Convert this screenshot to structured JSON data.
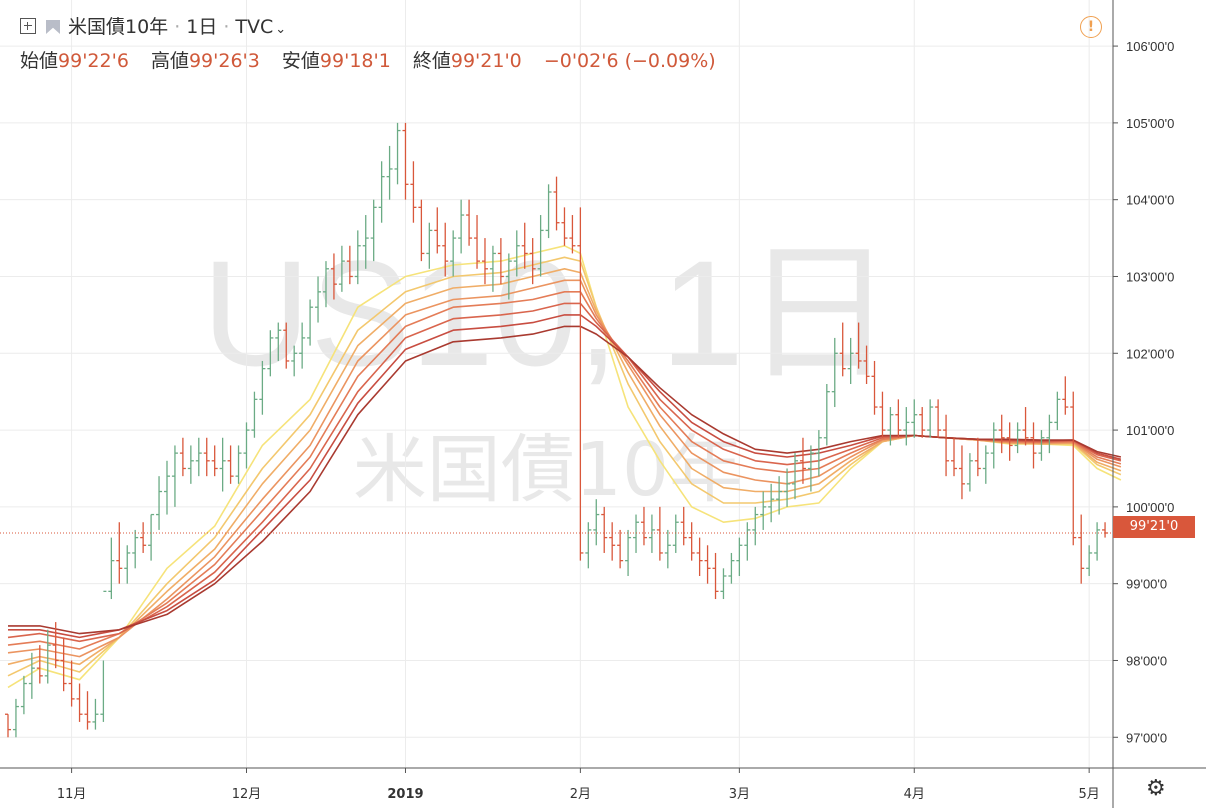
{
  "header": {
    "symbol_name": "米国債10年",
    "interval": "1日",
    "source": "TVC"
  },
  "ohlc": {
    "open_label": "始値",
    "open_value": "99'22'6",
    "high_label": "高値",
    "high_value": "99'26'3",
    "low_label": "安値",
    "low_value": "99'18'1",
    "close_label": "終値",
    "close_value": "99'21'0",
    "change_value": "−0'02'6 (−0.09%)"
  },
  "watermark": {
    "line1": "US10, 1日",
    "line2": "米国債10年"
  },
  "last_price_tag": "99'21'0",
  "colors": {
    "up": "#6bab85",
    "down": "#d9573b",
    "price_line": "#d9573b",
    "ribbon": [
      "#f6e37a",
      "#f3c86e",
      "#f0ad67",
      "#eb9460",
      "#e47c57",
      "#d9654d",
      "#c84d41",
      "#a93a30"
    ]
  },
  "icons": {
    "add": "plus-square-icon",
    "flag": "flag-icon",
    "alert": "warning-circle-icon",
    "settings": "gear-icon"
  },
  "chart_data": {
    "type": "ohlc",
    "title": "米国債10年",
    "ylim": [
      96.6,
      106.6
    ],
    "y_ticks": [
      97,
      98,
      99,
      100,
      101,
      102,
      103,
      104,
      105,
      106
    ],
    "y_tick_labels": [
      "97'00'0",
      "98'00'0",
      "99'00'0",
      "100'00'0",
      "101'00'0",
      "102'00'0",
      "103'00'0",
      "104'00'0",
      "105'00'0",
      "106'00'0"
    ],
    "x_ticks": [
      {
        "label": "11月",
        "day": 8
      },
      {
        "label": "12月",
        "day": 30
      },
      {
        "label": "2019",
        "day": 50
      },
      {
        "label": "2月",
        "day": 72
      },
      {
        "label": "3月",
        "day": 92
      },
      {
        "label": "4月",
        "day": 114
      },
      {
        "label": "5月",
        "day": 136
      }
    ],
    "last_close": 99.66,
    "bars": [
      [
        97.3,
        97.3,
        97.0,
        97.1
      ],
      [
        97.1,
        97.5,
        97.0,
        97.4
      ],
      [
        97.4,
        97.8,
        97.3,
        97.7
      ],
      [
        97.7,
        98.1,
        97.5,
        97.9
      ],
      [
        97.9,
        98.2,
        97.7,
        97.8
      ],
      [
        97.8,
        98.4,
        97.7,
        98.2
      ],
      [
        98.2,
        98.5,
        97.9,
        98.0
      ],
      [
        98.0,
        98.3,
        97.6,
        97.7
      ],
      [
        97.7,
        98.0,
        97.4,
        97.5
      ],
      [
        97.5,
        97.7,
        97.2,
        97.3
      ],
      [
        97.3,
        97.6,
        97.1,
        97.2
      ],
      [
        97.2,
        97.5,
        97.1,
        97.3
      ],
      [
        97.3,
        98.0,
        97.2,
        98.9
      ],
      [
        98.9,
        99.6,
        98.8,
        99.3
      ],
      [
        99.3,
        99.8,
        99.0,
        99.2
      ],
      [
        99.2,
        99.5,
        99.0,
        99.4
      ],
      [
        99.4,
        99.7,
        99.2,
        99.6
      ],
      [
        99.6,
        99.8,
        99.4,
        99.5
      ],
      [
        99.5,
        99.9,
        99.3,
        99.9
      ],
      [
        99.9,
        100.4,
        99.7,
        100.2
      ],
      [
        100.2,
        100.6,
        99.9,
        100.4
      ],
      [
        100.4,
        100.8,
        100.0,
        100.7
      ],
      [
        100.7,
        100.9,
        100.4,
        100.5
      ],
      [
        100.5,
        100.8,
        100.3,
        100.6
      ],
      [
        100.6,
        100.9,
        100.4,
        100.7
      ],
      [
        100.7,
        100.9,
        100.4,
        100.6
      ],
      [
        100.6,
        100.8,
        100.4,
        100.5
      ],
      [
        100.5,
        100.9,
        100.2,
        100.6
      ],
      [
        100.6,
        100.8,
        100.3,
        100.4
      ],
      [
        100.4,
        100.8,
        100.3,
        100.7
      ],
      [
        100.7,
        101.1,
        100.5,
        101.0
      ],
      [
        101.0,
        101.5,
        100.9,
        101.4
      ],
      [
        101.4,
        101.9,
        101.2,
        101.8
      ],
      [
        101.8,
        102.3,
        101.7,
        102.2
      ],
      [
        102.2,
        102.4,
        101.9,
        102.3
      ],
      [
        102.3,
        102.4,
        101.8,
        101.9
      ],
      [
        101.9,
        102.1,
        101.7,
        102.0
      ],
      [
        102.0,
        102.4,
        101.8,
        102.2
      ],
      [
        102.2,
        102.7,
        102.1,
        102.6
      ],
      [
        102.6,
        103.0,
        102.4,
        102.8
      ],
      [
        102.8,
        103.2,
        102.6,
        103.1
      ],
      [
        103.1,
        103.3,
        102.7,
        102.9
      ],
      [
        102.9,
        103.4,
        102.8,
        103.2
      ],
      [
        103.2,
        103.4,
        102.9,
        103.0
      ],
      [
        103.0,
        103.6,
        102.9,
        103.4
      ],
      [
        103.4,
        103.8,
        103.1,
        103.5
      ],
      [
        103.5,
        104.0,
        103.2,
        103.9
      ],
      [
        103.9,
        104.5,
        103.7,
        104.3
      ],
      [
        104.3,
        104.7,
        104.0,
        104.4
      ],
      [
        104.4,
        105.0,
        104.2,
        104.9
      ],
      [
        104.9,
        105.0,
        104.0,
        104.2
      ],
      [
        104.2,
        104.5,
        103.7,
        103.9
      ],
      [
        103.9,
        104.0,
        103.2,
        103.3
      ],
      [
        103.3,
        103.7,
        103.1,
        103.6
      ],
      [
        103.6,
        103.9,
        103.3,
        103.4
      ],
      [
        103.4,
        103.7,
        103.0,
        103.2
      ],
      [
        103.2,
        103.6,
        103.0,
        103.5
      ],
      [
        103.5,
        104.0,
        103.3,
        103.8
      ],
      [
        103.8,
        104.0,
        103.4,
        103.5
      ],
      [
        103.5,
        103.8,
        103.1,
        103.2
      ],
      [
        103.2,
        103.5,
        102.9,
        103.1
      ],
      [
        103.1,
        103.4,
        102.8,
        103.3
      ],
      [
        103.3,
        103.5,
        102.9,
        103.0
      ],
      [
        103.0,
        103.3,
        102.7,
        103.2
      ],
      [
        103.2,
        103.6,
        103.0,
        103.4
      ],
      [
        103.4,
        103.7,
        103.1,
        103.3
      ],
      [
        103.3,
        103.5,
        102.9,
        103.1
      ],
      [
        103.1,
        103.8,
        103.0,
        103.6
      ],
      [
        103.6,
        104.2,
        103.5,
        104.1
      ],
      [
        104.1,
        104.3,
        103.6,
        103.7
      ],
      [
        103.7,
        103.9,
        103.4,
        103.5
      ],
      [
        103.5,
        103.8,
        103.3,
        103.4
      ],
      [
        103.4,
        103.9,
        99.3,
        99.4
      ],
      [
        99.4,
        99.8,
        99.2,
        99.7
      ],
      [
        99.7,
        100.1,
        99.5,
        99.9
      ],
      [
        99.9,
        100.0,
        99.4,
        99.6
      ],
      [
        99.6,
        99.8,
        99.3,
        99.5
      ],
      [
        99.5,
        99.7,
        99.2,
        99.3
      ],
      [
        99.3,
        99.7,
        99.1,
        99.6
      ],
      [
        99.6,
        99.9,
        99.4,
        99.8
      ],
      [
        99.8,
        100.0,
        99.5,
        99.6
      ],
      [
        99.6,
        99.9,
        99.4,
        99.7
      ],
      [
        99.7,
        100.0,
        99.3,
        99.4
      ],
      [
        99.4,
        99.7,
        99.2,
        99.5
      ],
      [
        99.5,
        99.9,
        99.4,
        99.8
      ],
      [
        99.8,
        100.0,
        99.5,
        99.6
      ],
      [
        99.6,
        99.8,
        99.3,
        99.4
      ],
      [
        99.4,
        99.6,
        99.1,
        99.3
      ],
      [
        99.3,
        99.5,
        99.0,
        99.2
      ],
      [
        99.2,
        99.4,
        98.8,
        98.9
      ],
      [
        98.9,
        99.2,
        98.8,
        99.1
      ],
      [
        99.1,
        99.4,
        99.0,
        99.3
      ],
      [
        99.3,
        99.6,
        99.1,
        99.5
      ],
      [
        99.5,
        99.8,
        99.3,
        99.7
      ],
      [
        99.7,
        100.0,
        99.5,
        99.9
      ],
      [
        99.9,
        100.2,
        99.7,
        100.0
      ],
      [
        100.0,
        100.3,
        99.8,
        100.1
      ],
      [
        100.1,
        100.4,
        99.9,
        100.2
      ],
      [
        100.2,
        100.5,
        100.0,
        100.3
      ],
      [
        100.3,
        100.7,
        100.1,
        100.6
      ],
      [
        100.6,
        100.9,
        100.3,
        100.5
      ],
      [
        100.5,
        100.8,
        100.2,
        100.7
      ],
      [
        100.7,
        101.0,
        100.4,
        100.9
      ],
      [
        100.9,
        101.6,
        100.8,
        101.5
      ],
      [
        101.5,
        102.2,
        101.3,
        102.0
      ],
      [
        102.0,
        102.4,
        101.7,
        101.8
      ],
      [
        101.8,
        102.2,
        101.6,
        102.0
      ],
      [
        102.0,
        102.4,
        101.8,
        101.9
      ],
      [
        101.9,
        102.1,
        101.6,
        101.7
      ],
      [
        101.7,
        101.9,
        101.2,
        101.3
      ],
      [
        101.3,
        101.5,
        100.9,
        101.0
      ],
      [
        101.0,
        101.3,
        100.8,
        101.2
      ],
      [
        101.2,
        101.4,
        100.9,
        101.0
      ],
      [
        101.0,
        101.3,
        100.8,
        101.1
      ],
      [
        101.1,
        101.4,
        100.9,
        101.2
      ],
      [
        101.2,
        101.3,
        100.9,
        101.0
      ],
      [
        101.0,
        101.4,
        100.9,
        101.3
      ],
      [
        101.3,
        101.4,
        100.9,
        101.0
      ],
      [
        101.0,
        101.2,
        100.4,
        100.6
      ],
      [
        100.6,
        100.9,
        100.4,
        100.5
      ],
      [
        100.5,
        100.8,
        100.1,
        100.3
      ],
      [
        100.3,
        100.7,
        100.2,
        100.6
      ],
      [
        100.6,
        100.9,
        100.4,
        100.5
      ],
      [
        100.5,
        100.8,
        100.3,
        100.7
      ],
      [
        100.7,
        101.1,
        100.5,
        101.0
      ],
      [
        101.0,
        101.2,
        100.7,
        100.9
      ],
      [
        100.9,
        101.1,
        100.6,
        100.8
      ],
      [
        100.8,
        101.1,
        100.7,
        101.0
      ],
      [
        101.0,
        101.3,
        100.8,
        100.9
      ],
      [
        100.9,
        101.1,
        100.5,
        100.7
      ],
      [
        100.7,
        101.0,
        100.6,
        100.9
      ],
      [
        100.9,
        101.2,
        100.7,
        101.1
      ],
      [
        101.1,
        101.5,
        101.0,
        101.4
      ],
      [
        101.4,
        101.7,
        101.2,
        101.3
      ],
      [
        101.3,
        101.5,
        99.5,
        99.6
      ],
      [
        99.6,
        99.9,
        99.0,
        99.2
      ],
      [
        99.2,
        99.5,
        99.1,
        99.4
      ],
      [
        99.4,
        99.8,
        99.3,
        99.7
      ],
      [
        99.7,
        99.8,
        99.6,
        99.66
      ]
    ],
    "ma_ribbon": {
      "days": [
        0,
        4,
        9,
        14,
        20,
        26,
        32,
        38,
        44,
        50,
        56,
        62,
        66,
        70,
        72,
        74,
        78,
        82,
        86,
        90,
        94,
        98,
        102,
        106,
        110,
        114,
        118,
        122,
        126,
        130,
        134,
        137,
        140
      ],
      "series": [
        {
          "values": [
            97.65,
            97.9,
            97.75,
            98.3,
            99.2,
            99.75,
            100.8,
            101.4,
            102.6,
            103.0,
            103.15,
            103.2,
            103.3,
            103.4,
            103.3,
            102.6,
            101.3,
            100.6,
            100.0,
            99.8,
            99.85,
            100.0,
            100.05,
            100.5,
            100.85,
            100.93,
            100.9,
            100.87,
            100.82,
            100.82,
            100.8,
            100.5,
            100.35
          ]
        },
        {
          "values": [
            97.8,
            98.0,
            97.85,
            98.3,
            99.0,
            99.6,
            100.5,
            101.2,
            102.3,
            102.8,
            103.0,
            103.05,
            103.15,
            103.25,
            103.2,
            102.6,
            101.6,
            100.85,
            100.3,
            100.05,
            100.05,
            100.1,
            100.2,
            100.55,
            100.85,
            100.93,
            100.9,
            100.87,
            100.83,
            100.82,
            100.82,
            100.55,
            100.42
          ]
        },
        {
          "values": [
            97.95,
            98.05,
            97.95,
            98.3,
            98.9,
            99.45,
            100.3,
            101.0,
            102.1,
            102.65,
            102.85,
            102.9,
            103.0,
            103.1,
            103.05,
            102.55,
            101.75,
            101.05,
            100.5,
            100.25,
            100.2,
            100.2,
            100.3,
            100.6,
            100.85,
            100.93,
            100.9,
            100.87,
            100.83,
            100.82,
            100.83,
            100.58,
            100.47
          ]
        },
        {
          "values": [
            98.1,
            98.15,
            98.05,
            98.3,
            98.8,
            99.35,
            100.1,
            100.8,
            101.9,
            102.5,
            102.7,
            102.75,
            102.85,
            102.95,
            102.95,
            102.5,
            101.85,
            101.2,
            100.7,
            100.45,
            100.35,
            100.3,
            100.4,
            100.65,
            100.87,
            100.93,
            100.9,
            100.87,
            100.84,
            100.83,
            100.84,
            100.62,
            100.52
          ]
        },
        {
          "values": [
            98.2,
            98.25,
            98.15,
            98.35,
            98.75,
            99.25,
            99.95,
            100.65,
            101.7,
            102.35,
            102.6,
            102.65,
            102.7,
            102.8,
            102.8,
            102.45,
            101.9,
            101.3,
            100.85,
            100.6,
            100.5,
            100.45,
            100.5,
            100.7,
            100.88,
            100.93,
            100.9,
            100.88,
            100.85,
            100.84,
            100.85,
            100.65,
            100.56
          ]
        },
        {
          "values": [
            98.3,
            98.35,
            98.25,
            98.35,
            98.7,
            99.15,
            99.8,
            100.5,
            101.5,
            102.2,
            102.45,
            102.5,
            102.55,
            102.65,
            102.65,
            102.4,
            101.95,
            101.4,
            101.0,
            100.75,
            100.6,
            100.55,
            100.6,
            100.75,
            100.9,
            100.93,
            100.9,
            100.88,
            100.86,
            100.85,
            100.86,
            100.68,
            100.6
          ]
        },
        {
          "values": [
            98.4,
            98.4,
            98.3,
            98.4,
            98.65,
            99.05,
            99.7,
            100.35,
            101.35,
            102.05,
            102.3,
            102.35,
            102.4,
            102.5,
            102.5,
            102.35,
            101.95,
            101.5,
            101.1,
            100.85,
            100.7,
            100.65,
            100.7,
            100.8,
            100.92,
            100.93,
            100.9,
            100.88,
            100.87,
            100.86,
            100.87,
            100.7,
            100.62
          ]
        },
        {
          "values": [
            98.45,
            98.45,
            98.35,
            98.4,
            98.6,
            99.0,
            99.55,
            100.2,
            101.2,
            101.9,
            102.15,
            102.2,
            102.25,
            102.35,
            102.35,
            102.25,
            101.95,
            101.55,
            101.2,
            100.95,
            100.75,
            100.7,
            100.75,
            100.85,
            100.93,
            100.93,
            100.9,
            100.88,
            100.88,
            100.87,
            100.87,
            100.72,
            100.65
          ]
        }
      ]
    }
  }
}
